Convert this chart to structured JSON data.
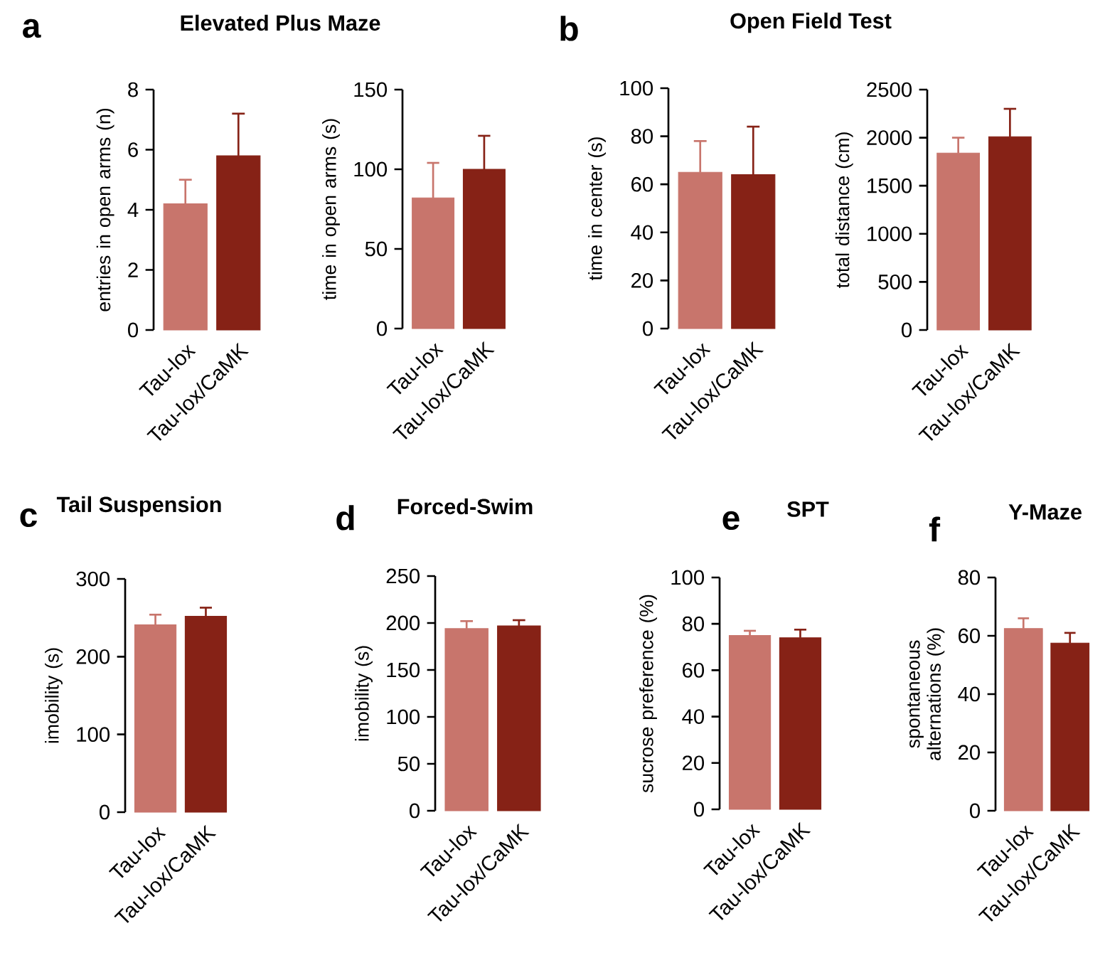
{
  "chart_data": [
    {
      "type": "bar",
      "title": "Elevated Plus Maze",
      "annotations": [
        "a"
      ],
      "ylabel": "entries in open arms (n)",
      "categories": [
        "Tau-lox",
        "Tau-lox/CaMK"
      ],
      "values": [
        4.2,
        5.8
      ],
      "errors": [
        [
          4.2,
          5.0
        ],
        [
          5.8,
          7.2
        ]
      ],
      "colors": [
        "#c8756c",
        "#862216"
      ],
      "ylim": [
        0,
        8
      ],
      "yticks": [
        0,
        2,
        4,
        6,
        8
      ]
    },
    {
      "type": "bar",
      "ylabel": "time in open arms (s)",
      "categories": [
        "Tau-lox",
        "Tau-lox/CaMK"
      ],
      "values": [
        82,
        100
      ],
      "errors": [
        [
          82,
          104
        ],
        [
          100,
          121
        ]
      ],
      "colors": [
        "#c8756c",
        "#862216"
      ],
      "ylim": [
        0,
        150
      ],
      "yticks": [
        0,
        50,
        100,
        150
      ]
    },
    {
      "type": "bar",
      "title": "Open Field Test",
      "annotations": [
        "b"
      ],
      "ylabel": "time in center (s)",
      "categories": [
        "Tau-lox",
        "Tau-lox/CaMK"
      ],
      "values": [
        65,
        64
      ],
      "errors": [
        [
          65,
          78
        ],
        [
          64,
          84
        ]
      ],
      "colors": [
        "#c8756c",
        "#862216"
      ],
      "ylim": [
        0,
        100
      ],
      "yticks": [
        0,
        20,
        40,
        60,
        80,
        100
      ]
    },
    {
      "type": "bar",
      "ylabel": "total distance (cm)",
      "categories": [
        "Tau-lox",
        "Tau-lox/CaMK"
      ],
      "values": [
        1840,
        2010
      ],
      "errors": [
        [
          1840,
          2000
        ],
        [
          2010,
          2300
        ]
      ],
      "colors": [
        "#c8756c",
        "#862216"
      ],
      "ylim": [
        0,
        2500
      ],
      "yticks": [
        0,
        500,
        1000,
        1500,
        2000,
        2500
      ]
    },
    {
      "type": "bar",
      "title": "Tail Suspension",
      "annotations": [
        "c"
      ],
      "ylabel": "imobility (s)",
      "categories": [
        "Tau-lox",
        "Tau-lox/CaMK"
      ],
      "values": [
        241,
        252
      ],
      "errors": [
        [
          241,
          254
        ],
        [
          252,
          263
        ]
      ],
      "colors": [
        "#c8756c",
        "#862216"
      ],
      "ylim": [
        0,
        300
      ],
      "yticks": [
        0,
        100,
        200,
        300
      ]
    },
    {
      "type": "bar",
      "title": "Forced-Swim",
      "annotations": [
        "d"
      ],
      "ylabel": "imobility (s)",
      "categories": [
        "Tau-lox",
        "Tau-lox/CaMK"
      ],
      "values": [
        194,
        197
      ],
      "errors": [
        [
          194,
          202
        ],
        [
          197,
          203
        ]
      ],
      "colors": [
        "#c8756c",
        "#862216"
      ],
      "ylim": [
        0,
        250
      ],
      "yticks": [
        0,
        50,
        100,
        150,
        200,
        250
      ]
    },
    {
      "type": "bar",
      "title": "SPT",
      "annotations": [
        "e"
      ],
      "ylabel": "sucrose preference (%)",
      "categories": [
        "Tau-lox",
        "Tau-lox/CaMK"
      ],
      "values": [
        75,
        74
      ],
      "errors": [
        [
          75,
          77
        ],
        [
          74,
          77.5
        ]
      ],
      "colors": [
        "#c8756c",
        "#862216"
      ],
      "ylim": [
        0,
        100
      ],
      "yticks": [
        0,
        20,
        40,
        60,
        80,
        100
      ]
    },
    {
      "type": "bar",
      "title": "Y-Maze",
      "annotations": [
        "f"
      ],
      "ylabel": "spontaneous alternations (%)",
      "categories": [
        "Tau-lox",
        "Tau-lox/CaMK"
      ],
      "values": [
        62.5,
        57.5
      ],
      "errors": [
        [
          62.5,
          66
        ],
        [
          57.5,
          61
        ]
      ],
      "colors": [
        "#c8756c",
        "#862216"
      ],
      "ylim": [
        0,
        80
      ],
      "yticks": [
        0,
        20,
        40,
        60,
        80
      ]
    }
  ]
}
